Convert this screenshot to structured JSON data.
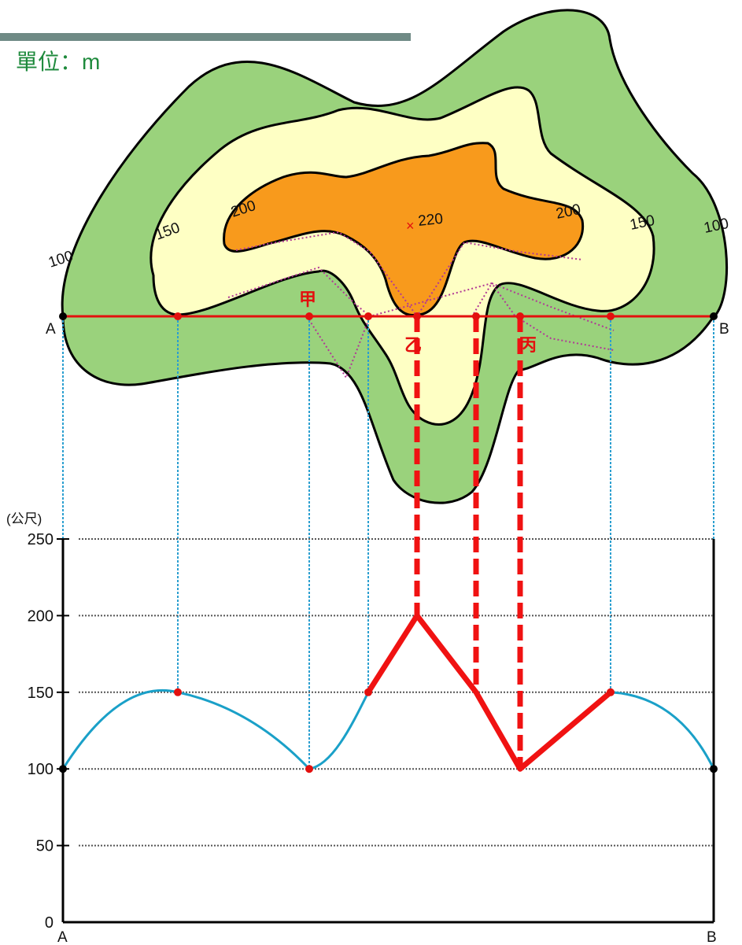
{
  "map": {
    "unit_label": "單位：m",
    "contour_labels": [
      "100",
      "150",
      "200",
      "200",
      "150",
      "100"
    ],
    "peak_label": "220",
    "peak_marker": "×",
    "section_start": "A",
    "section_end": "B",
    "stations": [
      "甲",
      "乙",
      "丙"
    ],
    "colors": {
      "band_100_150": "#9ad27c",
      "band_150_200": "#feffc4",
      "band_200_up": "#f89a1c",
      "section_line": "#e3100e",
      "projection": "#2b9fd0",
      "profile_line": "#1aa0c8",
      "profile_corrected": "#f01212"
    }
  },
  "chart_data": {
    "type": "line",
    "title": "",
    "xlabel": "",
    "ylabel": "(公尺)",
    "ylim": [
      0,
      250
    ],
    "yticks": [
      0,
      50,
      100,
      150,
      200,
      250
    ],
    "x_start_label": "A",
    "x_end_label": "B",
    "series": [
      {
        "points": [
          {
            "x": 0,
            "y": 100
          },
          {
            "x": 1,
            "y": 150
          },
          {
            "x": 2,
            "y": 100
          },
          {
            "x": 3,
            "y": 150
          }
        ]
      },
      {
        "points": [
          {
            "x": 3,
            "y": 150
          },
          {
            "x": 4,
            "y": 200
          },
          {
            "x": 5,
            "y": 150
          },
          {
            "x": 6,
            "y": 100
          },
          {
            "x": 7,
            "y": 150
          }
        ]
      },
      {
        "points": [
          {
            "x": 7,
            "y": 150
          },
          {
            "x": 8,
            "y": 100
          }
        ]
      }
    ]
  }
}
